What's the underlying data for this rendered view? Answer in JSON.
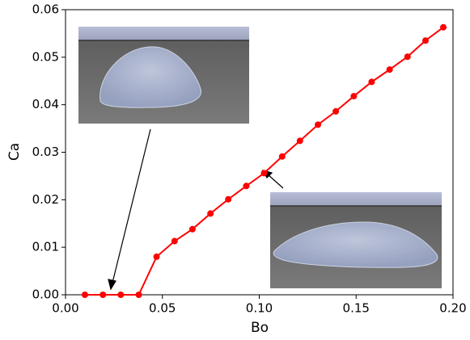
{
  "chart_data": {
    "type": "line",
    "x_label": "Bo",
    "y_label": "Ca",
    "x": [
      0.01,
      0.0193,
      0.0285,
      0.0378,
      0.047,
      0.0563,
      0.0655,
      0.0748,
      0.084,
      0.0933,
      0.1025,
      0.1118,
      0.121,
      0.1303,
      0.1395,
      0.1488,
      0.158,
      0.1673,
      0.1765,
      0.1858,
      0.195
    ],
    "series": [
      {
        "color": "#ff0000",
        "values": [
          0,
          0,
          0,
          0,
          0.008,
          0.0113,
          0.0138,
          0.0171,
          0.0201,
          0.0229,
          0.0256,
          0.0291,
          0.0324,
          0.0358,
          0.0386,
          0.0418,
          0.0448,
          0.0474,
          0.0501,
          0.0535,
          0.0563
        ]
      }
    ],
    "xlim": [
      0,
      0.2
    ],
    "xticks": [
      {
        "value": 0,
        "label": "0.00"
      },
      0.05,
      {
        "value": 0.1,
        "label": "0.10"
      },
      0.15,
      {
        "value": 0.2,
        "label": "0.20"
      }
    ],
    "ylim": [
      0,
      0.06
    ],
    "yticks": [
      {
        "value": 0,
        "label": "0.00"
      },
      0.01,
      0.02,
      0.03,
      0.04,
      0.05,
      0.06
    ],
    "grid": false
  }
}
